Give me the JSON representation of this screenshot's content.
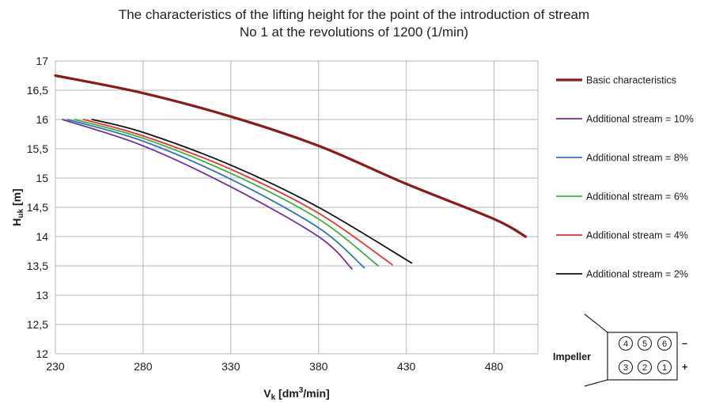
{
  "chart_data": {
    "type": "line",
    "title_line1": "The characteristics of the lifting height for the point of  the introduction of stream",
    "title_line2": "No 1 at the revolutions of 1200 (1/min)",
    "xlabel": {
      "base": "V",
      "sub": "k",
      "mid": " [dm",
      "sup": "3",
      "end": "/min]"
    },
    "ylabel": {
      "base": "H",
      "sub": "uk",
      "end": " [m]"
    },
    "xlim": [
      230,
      505
    ],
    "ylim": [
      12,
      17
    ],
    "xticks": [
      230,
      280,
      330,
      380,
      430,
      480
    ],
    "xtick_labels": [
      "230",
      "280",
      "330",
      "380",
      "430",
      "480"
    ],
    "yticks": [
      12,
      12.5,
      13,
      13.5,
      14,
      14.5,
      15,
      15.5,
      16,
      16.5,
      17
    ],
    "ytick_labels": [
      "12",
      "12,5",
      "13",
      "13,5",
      "14",
      "14,5",
      "15",
      "15,5",
      "16",
      "16,5",
      "17"
    ],
    "grid": true,
    "legend_position": "right",
    "series": [
      {
        "name": "Basic characteristics",
        "color": "#8b1a1a",
        "width": 3.2,
        "x": [
          230,
          280,
          330,
          380,
          430,
          480,
          498
        ],
        "y": [
          16.75,
          16.45,
          16.05,
          15.55,
          14.9,
          14.3,
          14.0
        ]
      },
      {
        "name": "Additional stream = 10%",
        "color": "#7030a0",
        "width": 1.8,
        "x": [
          234,
          280,
          330,
          380,
          399
        ],
        "y": [
          16.0,
          15.55,
          14.85,
          14.0,
          13.45
        ]
      },
      {
        "name": "Additional stream = 8%",
        "color": "#2e75b6",
        "width": 1.8,
        "x": [
          237,
          280,
          330,
          380,
          406
        ],
        "y": [
          16.0,
          15.63,
          14.98,
          14.15,
          13.47
        ]
      },
      {
        "name": "Additional stream = 6%",
        "color": "#3cb043",
        "width": 1.8,
        "x": [
          241,
          280,
          330,
          380,
          414
        ],
        "y": [
          16.0,
          15.68,
          15.08,
          14.3,
          13.5
        ]
      },
      {
        "name": "Additional stream = 4%",
        "color": "#e8312f",
        "width": 1.8,
        "x": [
          246,
          280,
          330,
          380,
          422
        ],
        "y": [
          16.0,
          15.72,
          15.15,
          14.4,
          13.52
        ]
      },
      {
        "name": "Additional stream  = 2%",
        "color": "#111111",
        "width": 1.8,
        "x": [
          251,
          280,
          330,
          380,
          433
        ],
        "y": [
          16.0,
          15.78,
          15.22,
          14.5,
          13.55
        ]
      }
    ]
  },
  "impeller": {
    "label": "Impeller",
    "top_row": [
      "4",
      "5",
      "6"
    ],
    "bottom_row": [
      "3",
      "2",
      "1"
    ],
    "minus": "–",
    "plus": "+"
  }
}
